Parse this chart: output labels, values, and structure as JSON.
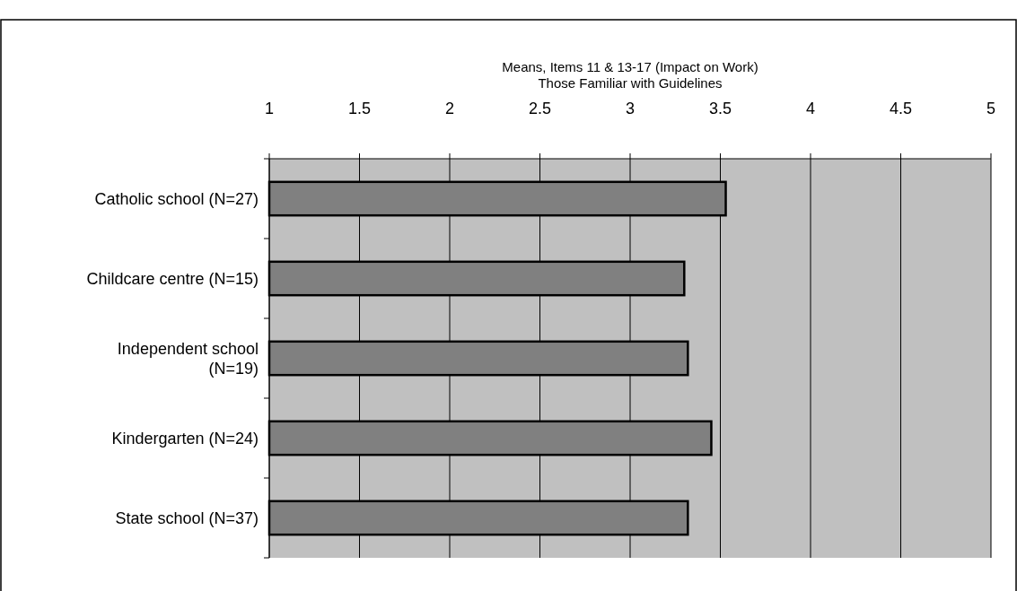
{
  "chart_data": {
    "type": "bar",
    "orientation": "horizontal",
    "title": "Means, Items 11 & 13-17 (Impact on Work)",
    "subtitle": "Those Familiar with Guidelines",
    "categories": [
      "Catholic school (N=27)",
      "Childcare centre (N=15)",
      "Independent school (N=19)",
      "Kindergarten (N=24)",
      "State school (N=37)"
    ],
    "values": [
      3.53,
      3.3,
      3.32,
      3.45,
      3.32
    ],
    "color": "#808080",
    "xlim": [
      1,
      5
    ],
    "xticks": [
      1,
      1.5,
      2,
      2.5,
      3,
      3.5,
      4,
      4.5,
      5
    ],
    "grid": "x"
  }
}
